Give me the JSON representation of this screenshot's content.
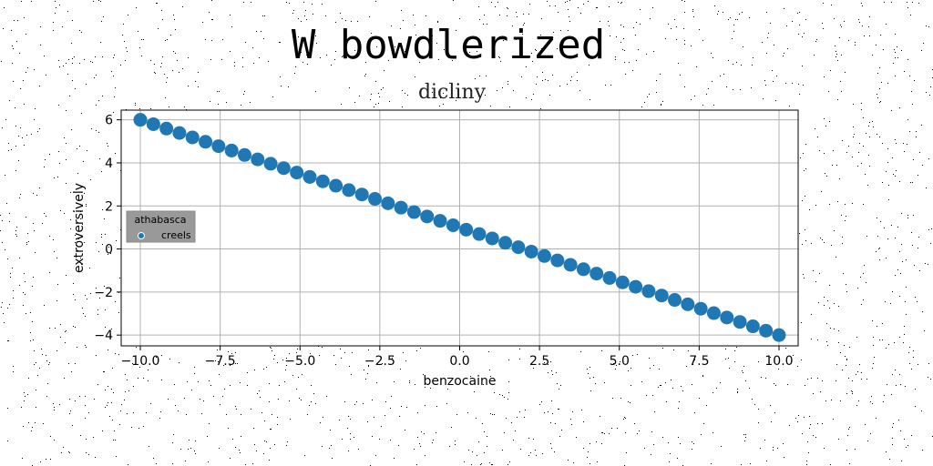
{
  "chart_data": {
    "type": "scatter",
    "title": "W bowdlerized",
    "subtitle": "dicliny",
    "xlabel": "benzocaine",
    "ylabel": "extroversively",
    "xlim": [
      -10.6,
      10.6
    ],
    "ylim": [
      -4.5,
      6.45
    ],
    "xticks": [
      -10.0,
      -7.5,
      -5.0,
      -2.5,
      0.0,
      2.5,
      5.0,
      7.5,
      10.0
    ],
    "xtick_labels": [
      "−10.0",
      "−7.5",
      "−5.0",
      "−2.5",
      "0.0",
      "2.5",
      "5.0",
      "7.5",
      "10.0"
    ],
    "yticks": [
      -4,
      -2,
      0,
      2,
      4,
      6
    ],
    "ytick_labels": [
      "−4",
      "−2",
      "0",
      "2",
      "4",
      "6"
    ],
    "grid": true,
    "legend": {
      "title": "athabasca",
      "placement": "center-left",
      "entries": [
        "creels"
      ]
    },
    "series": [
      {
        "name": "creels",
        "color": "#1f77b4",
        "x_range": [
          -10,
          10
        ],
        "n_points": 50,
        "slope": -0.5,
        "intercept": 1.0
      }
    ]
  }
}
